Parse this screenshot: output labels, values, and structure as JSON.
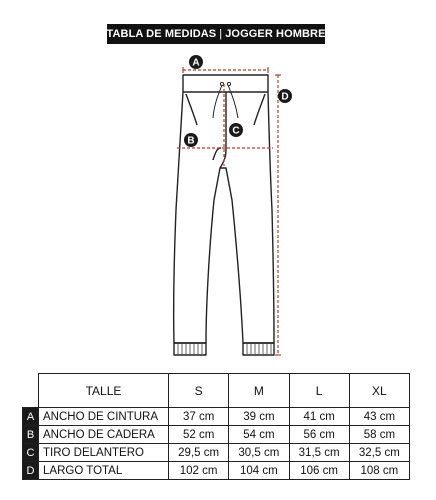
{
  "header": {
    "title_left": "TABLA DE MEDIDAS",
    "separator": "|",
    "title_right": "JOGGER HOMBRE"
  },
  "figure": {
    "badges": {
      "a": "A",
      "b": "B",
      "c": "C",
      "d": "D"
    },
    "guide_color": "#c0392b",
    "badge_color": "#1a1a1a"
  },
  "table": {
    "col_label": "TALLE",
    "sizes": [
      "S",
      "M",
      "L",
      "XL"
    ],
    "rows": [
      {
        "letter": "A",
        "label": "ANCHO DE CINTURA",
        "values": [
          "37 cm",
          "39 cm",
          "41 cm",
          "43 cm"
        ]
      },
      {
        "letter": "B",
        "label": "ANCHO DE CADERA",
        "values": [
          "52 cm",
          "54 cm",
          "56 cm",
          "58 cm"
        ]
      },
      {
        "letter": "C",
        "label": "TIRO DELANTERO",
        "values": [
          "29,5 cm",
          "30,5 cm",
          "31,5 cm",
          "32,5 cm"
        ]
      },
      {
        "letter": "D",
        "label": "LARGO TOTAL",
        "values": [
          "102 cm",
          "104 cm",
          "106 cm",
          "108 cm"
        ]
      }
    ]
  }
}
